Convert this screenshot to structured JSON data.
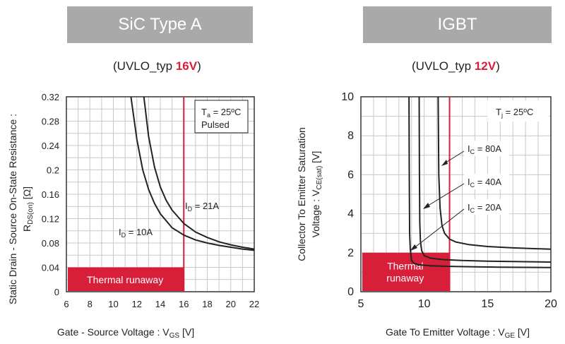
{
  "left_panel": {
    "header": "SiC Type A",
    "uvlo_prefix": "(UVLO_typ ",
    "uvlo_value": "16V",
    "uvlo_suffix": ")"
  },
  "right_panel": {
    "header": "IGBT",
    "uvlo_prefix": "(UVLO_typ ",
    "uvlo_value": "12V",
    "uvlo_suffix": ")"
  },
  "colors": {
    "banner": "#a9a9a9",
    "accent_red": "#d71f3a",
    "curve": "#222222",
    "grid": "#c8c8c8"
  },
  "chart_data": [
    {
      "type": "line",
      "x_label": "Gate - Source Voltage : V",
      "x_label_sub": "GS",
      "x_label_unit": " [V]",
      "y_label_line1": "Static Drain - Source On-State Resistance :",
      "y_label_line2": "R",
      "y_label_line2_sub": "DS(on)",
      "y_label_line2_unit": " [Ω]",
      "xlim": [
        6,
        22
      ],
      "ylim": [
        0,
        0.32
      ],
      "x_ticks": [
        6,
        8,
        10,
        12,
        14,
        16,
        18,
        20,
        22
      ],
      "y_ticks": [
        0,
        0.04,
        0.08,
        0.12,
        0.16,
        0.2,
        0.24,
        0.28,
        0.32
      ],
      "x_tick_labels": [
        "6",
        "8",
        "10",
        "12",
        "14",
        "16",
        "18",
        "20",
        "22"
      ],
      "y_tick_labels": [
        "0",
        "0.04",
        "0.08",
        "0.12",
        "0.16",
        "0.2",
        "0.24",
        "0.28",
        "0.32"
      ],
      "grid": true,
      "legend_box": {
        "line1": "T",
        "line1_sub": "a",
        "line1_rest": " = 25ºC",
        "line2": "Pulsed",
        "placement": "top-right"
      },
      "series": [
        {
          "name": "I_D = 10A",
          "label": "I",
          "label_sub": "D",
          "label_rest": " = 10A",
          "x": [
            11.5,
            12,
            12.5,
            13,
            13.5,
            14,
            15,
            16,
            17,
            18,
            19,
            20,
            21,
            22
          ],
          "y": [
            0.32,
            0.25,
            0.2,
            0.168,
            0.145,
            0.128,
            0.105,
            0.093,
            0.085,
            0.08,
            0.076,
            0.073,
            0.07,
            0.068
          ]
        },
        {
          "name": "I_D = 21A",
          "label": "I",
          "label_sub": "D",
          "label_rest": " = 21A",
          "x": [
            12.6,
            13,
            13.5,
            14,
            14.5,
            15,
            16,
            17,
            18,
            19,
            20,
            21,
            22
          ],
          "y": [
            0.32,
            0.255,
            0.205,
            0.172,
            0.15,
            0.134,
            0.112,
            0.098,
            0.089,
            0.082,
            0.077,
            0.073,
            0.07
          ]
        }
      ],
      "threshold_x": 16,
      "region": {
        "label": "Thermal runaway",
        "x": [
          6,
          16
        ],
        "y": [
          0,
          0.04
        ]
      }
    },
    {
      "type": "line",
      "x_label": "Gate To Emitter Voltage : V",
      "x_label_sub": "GE",
      "x_label_unit": " [V]",
      "y_label_line1": "Collector To Emitter Saturation",
      "y_label_line2": "Voltage : V",
      "y_label_line2_sub": "CE(sat)",
      "y_label_line2_unit": " [V]",
      "xlim": [
        5,
        20
      ],
      "ylim": [
        0,
        10
      ],
      "x_ticks": [
        5,
        10,
        15,
        20
      ],
      "y_ticks": [
        0,
        2,
        4,
        6,
        8,
        10
      ],
      "x_tick_labels": [
        "5",
        "10",
        "15",
        "20"
      ],
      "y_tick_labels": [
        "0",
        "2",
        "4",
        "6",
        "8",
        "10"
      ],
      "grid": true,
      "legend_box": {
        "line1": "T",
        "line1_sub": "j",
        "line1_rest": " = 25ºC",
        "placement": "top-right"
      },
      "series": [
        {
          "name": "I_C = 20A",
          "label": "I",
          "label_sub": "C",
          "label_rest": " = 20A",
          "x": [
            8.8,
            8.82,
            8.85,
            8.9,
            9.0,
            9.2,
            9.6,
            10.5,
            12,
            14,
            16,
            18,
            20
          ],
          "y": [
            10,
            6,
            3,
            2.2,
            1.6,
            1.45,
            1.38,
            1.33,
            1.3,
            1.28,
            1.26,
            1.25,
            1.24
          ]
        },
        {
          "name": "I_C = 40A",
          "label": "I",
          "label_sub": "C",
          "label_rest": " = 40A",
          "x": [
            9.6,
            9.62,
            9.65,
            9.7,
            9.8,
            10.0,
            10.5,
            11.5,
            13,
            15,
            17,
            20
          ],
          "y": [
            10,
            6,
            3.5,
            2.6,
            2.1,
            1.85,
            1.72,
            1.65,
            1.6,
            1.57,
            1.55,
            1.52
          ]
        },
        {
          "name": "I_C = 80A",
          "label": "I",
          "label_sub": "C",
          "label_rest": " = 80A",
          "x": [
            11.1,
            11.15,
            11.25,
            11.4,
            11.6,
            12.0,
            12.5,
            13.5,
            15,
            17,
            20
          ],
          "y": [
            10,
            6,
            4.3,
            3.4,
            3.0,
            2.7,
            2.55,
            2.42,
            2.32,
            2.25,
            2.18
          ]
        }
      ],
      "threshold_x": 12,
      "region": {
        "label_line1": "Thermal",
        "label_line2": "runaway",
        "x": [
          5,
          12
        ],
        "y": [
          0,
          2
        ]
      }
    }
  ]
}
